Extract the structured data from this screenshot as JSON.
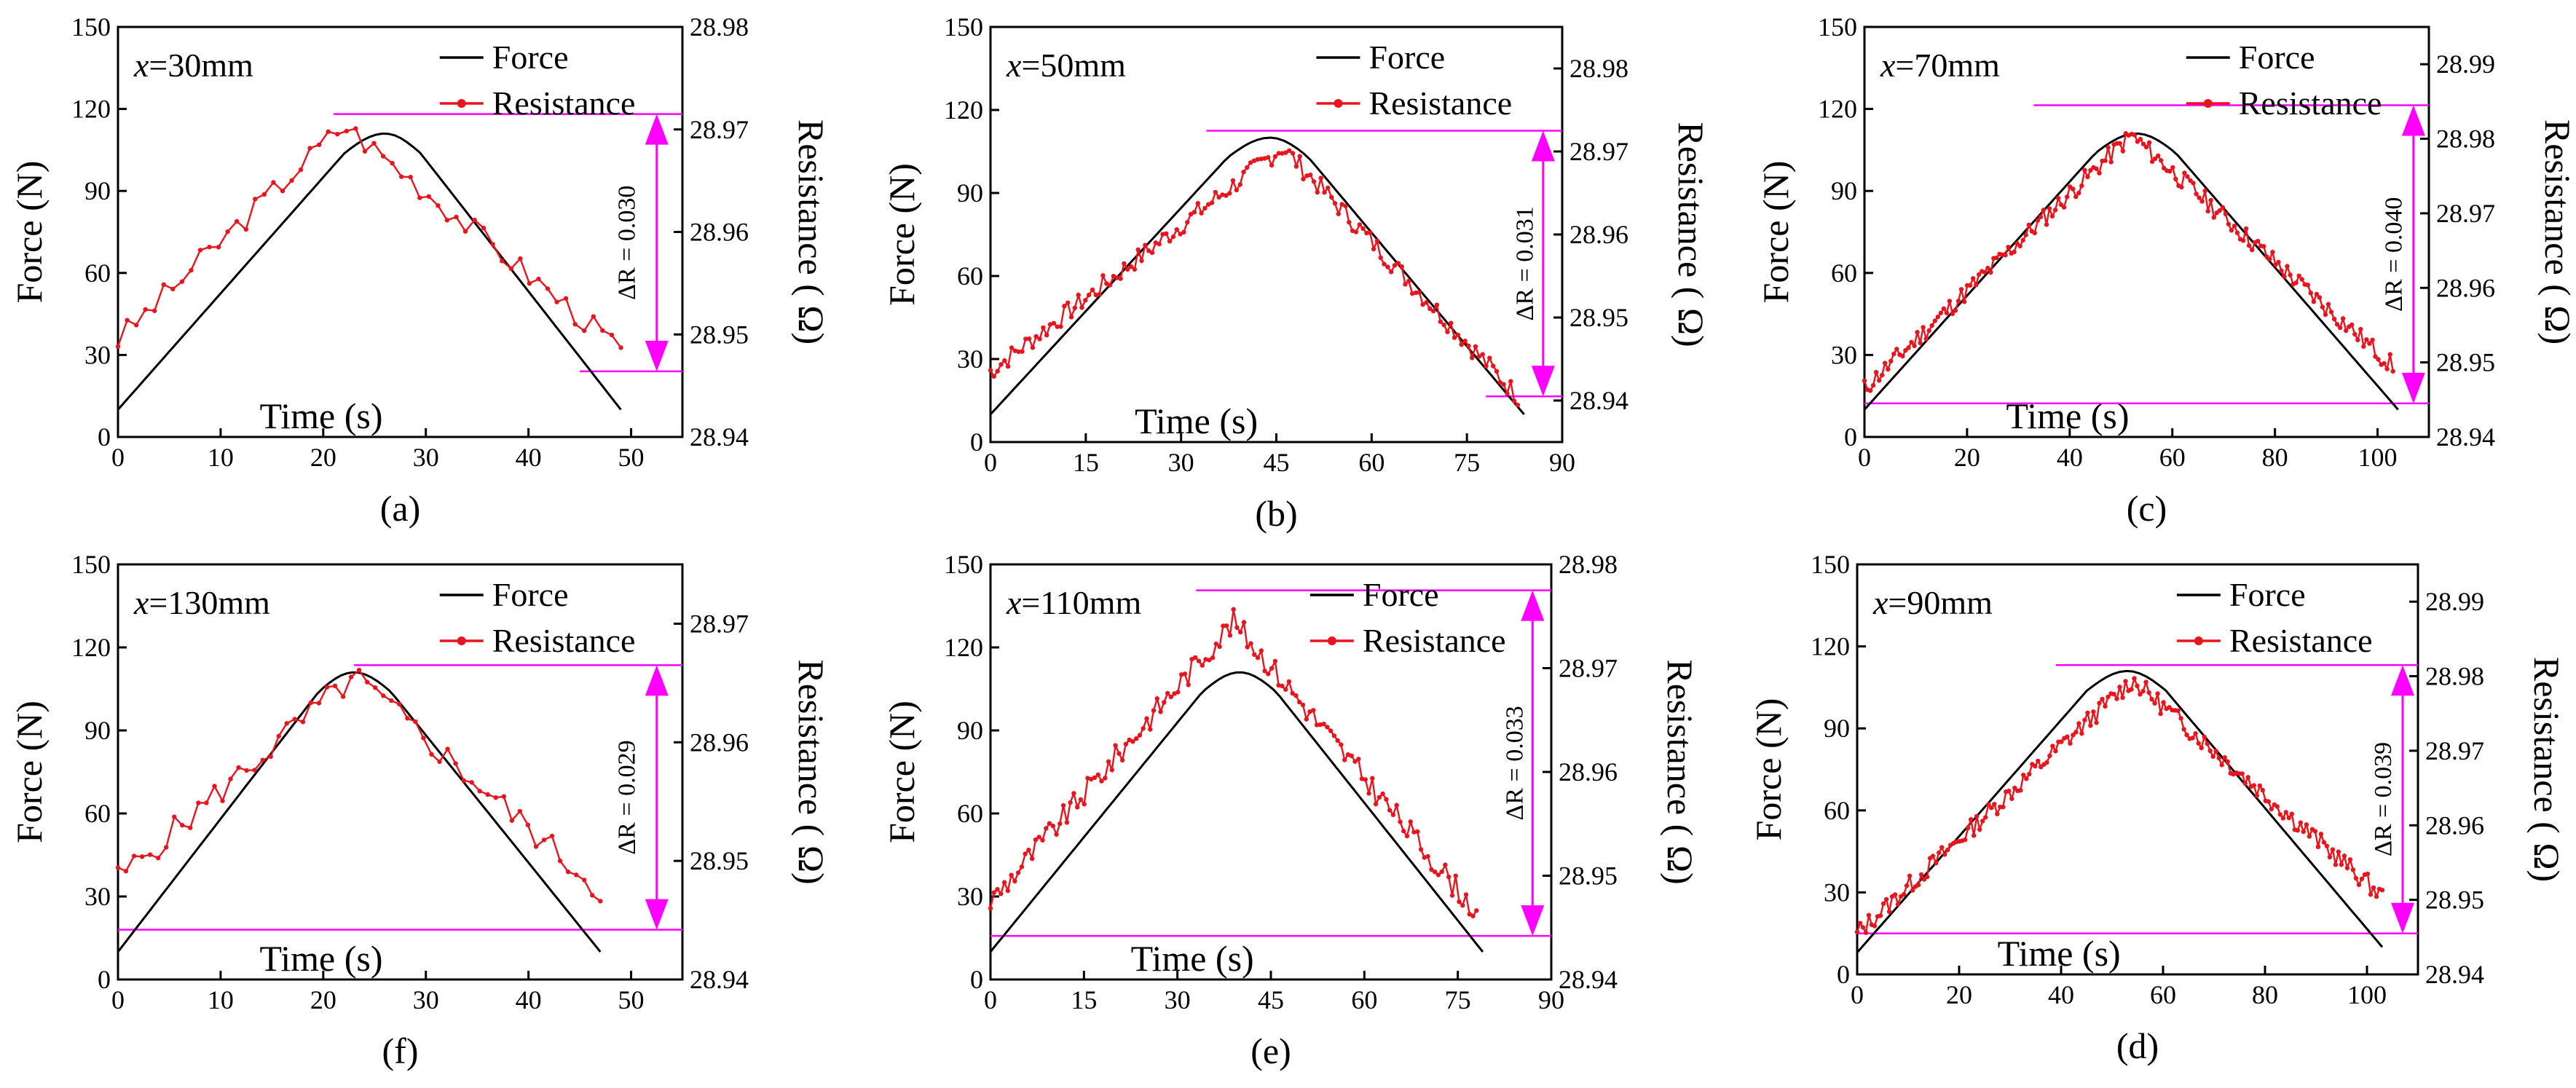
{
  "figure": {
    "left_axis_label": "Force (N)",
    "right_axis_label": "Resistance ( Ω)",
    "x_axis_label": "Time (s)",
    "legend": [
      "Force",
      "Resistance"
    ],
    "force_color": "#000000",
    "resistance_color": "#e8141e",
    "annotation_color": "#ff00ff"
  },
  "chart_data": [
    {
      "id": "a",
      "type": "line",
      "subplot_label": "(a)",
      "position_label": "x=30mm",
      "title_var": "x",
      "title_rest": "=30mm",
      "title": "",
      "xlabel": "Time (s)",
      "ylabel": "Force (N)",
      "y2label": "Resistance ( Ω)",
      "xlim": [
        0,
        55
      ],
      "xticks": [
        0,
        10,
        20,
        30,
        40,
        50
      ],
      "ylim": [
        0,
        150
      ],
      "yticks": [
        0,
        30,
        60,
        90,
        120,
        150
      ],
      "y2lim": [
        28.94,
        28.98
      ],
      "y2ticks": [
        "28.94",
        "28.95",
        "28.96",
        "28.97",
        "28.98"
      ],
      "delta_r_text": "ΔR = 0.030",
      "delta_r": 0.03,
      "force": {
        "name": "Force",
        "t_start": 0,
        "t_peak": 26,
        "t_end": 49,
        "f_start": 10,
        "f_peak": 111,
        "f_end": 10
      },
      "resistance": {
        "name": "Resistance",
        "t_start": 0,
        "t_peak": 22,
        "t_end": 49,
        "r_start": 28.9495,
        "r_peak": 28.9705,
        "r_end": 28.9485,
        "n": 55,
        "noise": 0.0012,
        "seed": 3
      },
      "ref_top": {
        "r": 28.9715,
        "x_from": 21,
        "x_to": 55
      },
      "ref_bottom": {
        "r": 28.9464,
        "x_from": 45,
        "x_to": 55
      },
      "arrow_x": 52.5,
      "text_x": 49.5
    },
    {
      "id": "b",
      "type": "line",
      "subplot_label": "(b)",
      "position_label": "x=50mm",
      "title_var": "x",
      "title_rest": "=50mm",
      "title": "",
      "xlabel": "Time (s)",
      "ylabel": "Force (N)",
      "y2label": "Resistance ( Ω)",
      "xlim": [
        0,
        90
      ],
      "xticks": [
        0,
        15,
        30,
        45,
        60,
        75,
        90
      ],
      "ylim": [
        0,
        150
      ],
      "yticks": [
        0,
        30,
        60,
        90,
        120,
        150
      ],
      "y2lim": [
        28.935,
        28.985
      ],
      "y2ticks": [
        "28.94",
        "28.95",
        "28.96",
        "28.97",
        "28.98"
      ],
      "delta_r_text": "ΔR = 0.031",
      "delta_r": 0.031,
      "force": {
        "name": "Force",
        "t_start": 0,
        "t_peak": 44,
        "t_end": 84,
        "f_start": 10,
        "f_peak": 110,
        "f_end": 10
      },
      "resistance": {
        "name": "Resistance",
        "t_start": 0,
        "t_peak": 46,
        "t_end": 83,
        "r_start": 28.9435,
        "r_peak": 28.9705,
        "r_end": 28.9405,
        "n": 150,
        "noise": 0.0012,
        "seed": 7
      },
      "ref_top": {
        "r": 28.9725,
        "x_from": 34,
        "x_to": 90
      },
      "ref_bottom": {
        "r": 28.9405,
        "x_from": 78,
        "x_to": 90
      },
      "arrow_x": 87,
      "text_x": 84
    },
    {
      "id": "c",
      "type": "line",
      "subplot_label": "(c)",
      "position_label": "x=70mm",
      "title_var": "x",
      "title_rest": "=70mm",
      "title": "",
      "xlabel": "Time (s)",
      "ylabel": "Force (N)",
      "y2label": "Resistance ( Ω)",
      "xlim": [
        0,
        110
      ],
      "xticks": [
        0,
        20,
        40,
        60,
        80,
        100
      ],
      "ylim": [
        0,
        150
      ],
      "yticks": [
        0,
        30,
        60,
        90,
        120,
        150
      ],
      "y2lim": [
        28.94,
        28.995
      ],
      "y2ticks": [
        "28.94",
        "28.95",
        "28.96",
        "28.97",
        "28.98",
        "28.99"
      ],
      "delta_r_text": "ΔR = 0.040",
      "delta_r": 0.04,
      "force": {
        "name": "Force",
        "t_start": 0,
        "t_peak": 53,
        "t_end": 104,
        "f_start": 10,
        "f_peak": 111,
        "f_end": 10
      },
      "resistance": {
        "name": "Resistance",
        "t_start": 0,
        "t_peak": 52,
        "t_end": 103,
        "r_start": 28.9465,
        "r_peak": 28.9805,
        "r_end": 28.9495,
        "n": 180,
        "noise": 0.0013,
        "seed": 11
      },
      "ref_top": {
        "r": 28.9845,
        "x_from": 33,
        "x_to": 110
      },
      "ref_bottom": {
        "r": 28.9445,
        "x_from": 0,
        "x_to": 110
      },
      "arrow_x": 107,
      "text_x": 103
    },
    {
      "id": "f",
      "type": "line",
      "subplot_label": "(f)",
      "position_label": "x=130mm",
      "title_var": "x",
      "title_rest": "=130mm",
      "title": "",
      "xlabel": "Time (s)",
      "ylabel": "Force (N)",
      "y2label": "Resistance ( Ω)",
      "xlim": [
        0,
        55
      ],
      "xticks": [
        0,
        10,
        20,
        30,
        40,
        50
      ],
      "ylim": [
        0,
        150
      ],
      "yticks": [
        0,
        30,
        60,
        90,
        120,
        150
      ],
      "y2lim": [
        28.94,
        28.975
      ],
      "y2ticks": [
        "28.94",
        "28.95",
        "28.96",
        "28.97"
      ],
      "delta_r_text": "ΔR = 0.029",
      "delta_r": 0.029,
      "force": {
        "name": "Force",
        "t_start": 0,
        "t_peak": 23,
        "t_end": 47,
        "f_start": 10,
        "f_peak": 111,
        "f_end": 10
      },
      "resistance": {
        "name": "Resistance",
        "t_start": 0,
        "t_peak": 23,
        "t_end": 47,
        "r_start": 28.9485,
        "r_peak": 28.9655,
        "r_end": 28.9475,
        "n": 60,
        "noise": 0.0012,
        "seed": 5
      },
      "ref_top": {
        "r": 28.9665,
        "x_from": 23,
        "x_to": 55
      },
      "ref_bottom": {
        "r": 28.9442,
        "x_from": 0,
        "x_to": 55
      },
      "arrow_x": 52.5,
      "text_x": 49.5
    },
    {
      "id": "e",
      "type": "line",
      "subplot_label": "(e)",
      "position_label": "x=110mm",
      "title_var": "x",
      "title_rest": "=110mm",
      "title": "",
      "xlabel": "Time (s)",
      "ylabel": "Force (N)",
      "y2label": "Resistance ( Ω)",
      "xlim": [
        0,
        90
      ],
      "xticks": [
        0,
        15,
        30,
        45,
        60,
        75,
        90
      ],
      "ylim": [
        0,
        150
      ],
      "yticks": [
        0,
        30,
        60,
        90,
        120,
        150
      ],
      "y2lim": [
        28.94,
        28.98
      ],
      "y2ticks": [
        "28.94",
        "28.95",
        "28.96",
        "28.97",
        "28.98"
      ],
      "delta_r_text": "ΔR = 0.033",
      "delta_r": 0.033,
      "force": {
        "name": "Force",
        "t_start": 0,
        "t_peak": 40,
        "t_end": 79,
        "f_start": 10,
        "f_peak": 111,
        "f_end": 10
      },
      "resistance": {
        "name": "Resistance",
        "t_start": 0,
        "t_peak": 39,
        "t_end": 78,
        "r_start": 28.9475,
        "r_peak": 28.9745,
        "r_end": 28.9465,
        "n": 140,
        "noise": 0.0012,
        "seed": 9
      },
      "ref_top": {
        "r": 28.9775,
        "x_from": 33,
        "x_to": 90
      },
      "ref_bottom": {
        "r": 28.9442,
        "x_from": 0,
        "x_to": 90
      },
      "arrow_x": 87,
      "text_x": 84
    },
    {
      "id": "d",
      "type": "line",
      "subplot_label": "(d)",
      "position_label": "x=90mm",
      "title_var": "x",
      "title_rest": "=90mm",
      "title": "",
      "xlabel": "Time (s)",
      "ylabel": "Force (N)",
      "y2label": "Resistance ( Ω)",
      "xlim": [
        0,
        110
      ],
      "xticks": [
        0,
        20,
        40,
        60,
        80,
        100
      ],
      "ylim": [
        0,
        150
      ],
      "yticks": [
        0,
        30,
        60,
        90,
        120,
        150
      ],
      "y2lim": [
        28.94,
        28.995
      ],
      "y2ticks": [
        "28.94",
        "28.95",
        "28.96",
        "28.97",
        "28.98",
        "28.99"
      ],
      "delta_r_text": "ΔR = 0.039",
      "delta_r": 0.039,
      "force": {
        "name": "Force",
        "t_start": 0,
        "t_peak": 53,
        "t_end": 103,
        "f_start": 8,
        "f_peak": 111,
        "f_end": 10
      },
      "resistance": {
        "name": "Resistance",
        "t_start": 0,
        "t_peak": 54,
        "t_end": 103,
        "r_start": 28.9455,
        "r_peak": 28.9795,
        "r_end": 28.9505,
        "n": 180,
        "noise": 0.0013,
        "seed": 13
      },
      "ref_top": {
        "r": 28.9815,
        "x_from": 39,
        "x_to": 110
      },
      "ref_bottom": {
        "r": 28.9455,
        "x_from": 0,
        "x_to": 110
      },
      "arrow_x": 107,
      "text_x": 103
    }
  ]
}
